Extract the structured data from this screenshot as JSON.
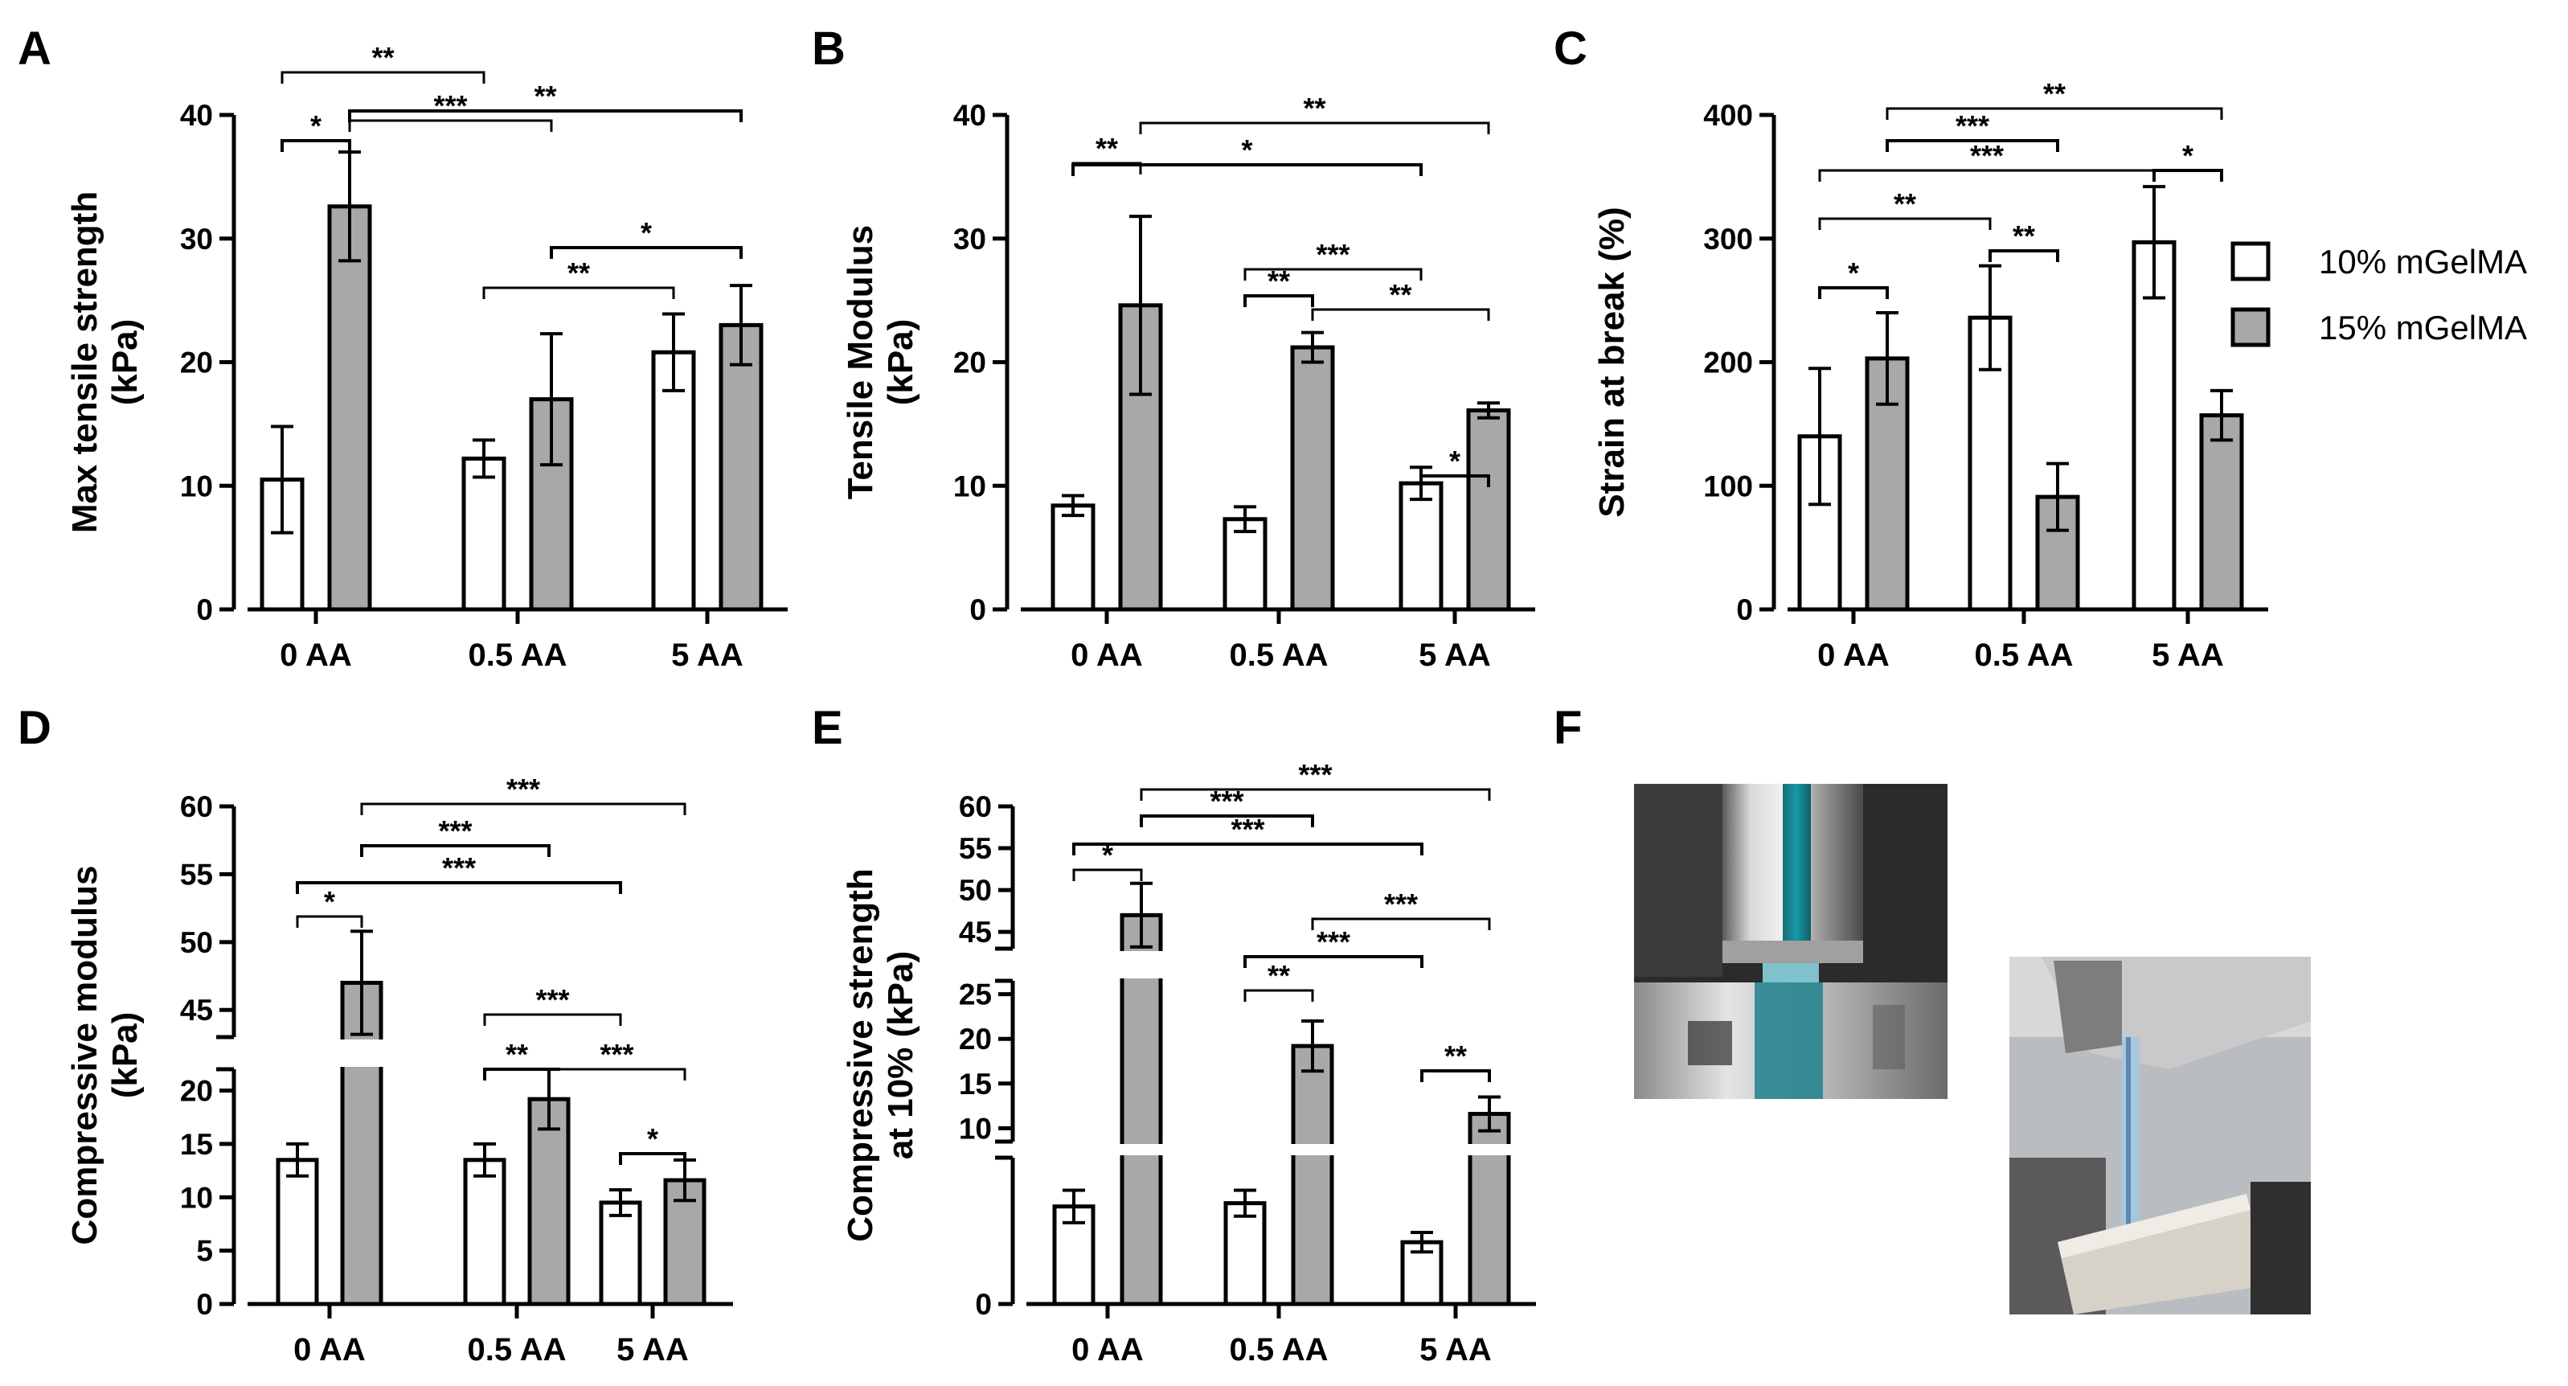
{
  "figure": {
    "panel_letters": {
      "A": "A",
      "B": "B",
      "C": "C",
      "D": "D",
      "E": "E",
      "F": "F"
    },
    "legend": [
      {
        "label": "10% mGelMA",
        "color": "#ffffff"
      },
      {
        "label": "15% mGelMA",
        "color": "#a8a8a8"
      }
    ],
    "colors": {
      "series_10": "#ffffff",
      "series_15": "#a8a8a8",
      "stroke": "#000000"
    },
    "photos": [
      {
        "name": "compression-test-photo",
        "description_icon": "photo-icon"
      },
      {
        "name": "tensile-test-photo",
        "description_icon": "photo-icon"
      }
    ]
  },
  "chart_data": [
    {
      "panel": "A",
      "type": "bar",
      "title": "",
      "xlabel": "",
      "ylabel": "Max tensile strength\n(kPa)",
      "categories": [
        "0 AA",
        "0.5 AA",
        "5 AA"
      ],
      "series": [
        {
          "name": "10% mGelMA",
          "values": [
            10.5,
            12.2,
            20.8
          ],
          "errors": [
            4.3,
            1.5,
            3.1
          ]
        },
        {
          "name": "15% mGelMA",
          "values": [
            32.6,
            17.0,
            23.0
          ],
          "errors": [
            4.4,
            5.3,
            3.2
          ]
        }
      ],
      "ylim": [
        0,
        40
      ],
      "yticks": [
        "0",
        "10",
        "20",
        "30",
        "40"
      ],
      "significance": [
        {
          "from": [
            0,
            0
          ],
          "to": [
            1,
            0
          ],
          "label": "**"
        },
        {
          "from": [
            0,
            0
          ],
          "to": [
            0,
            1
          ],
          "label": "*"
        },
        {
          "from": [
            0,
            1
          ],
          "to": [
            1,
            1
          ],
          "label": "***"
        },
        {
          "from": [
            0,
            1
          ],
          "to": [
            2,
            1
          ],
          "label": "**"
        },
        {
          "from": [
            1,
            0
          ],
          "to": [
            2,
            0
          ],
          "label": "**"
        },
        {
          "from": [
            1,
            1
          ],
          "to": [
            2,
            1
          ],
          "label": "*"
        }
      ]
    },
    {
      "panel": "B",
      "type": "bar",
      "title": "",
      "xlabel": "",
      "ylabel": "Tensile Modulus\n(kPa)",
      "categories": [
        "0 AA",
        "0.5 AA",
        "5 AA"
      ],
      "series": [
        {
          "name": "10% mGelMA",
          "values": [
            8.4,
            7.3,
            10.2
          ],
          "errors": [
            0.8,
            1.0,
            1.3
          ]
        },
        {
          "name": "15% mGelMA",
          "values": [
            24.6,
            21.2,
            16.1
          ],
          "errors": [
            7.2,
            1.2,
            0.6
          ]
        }
      ],
      "ylim": [
        0,
        40
      ],
      "yticks": [
        "0",
        "10",
        "20",
        "30",
        "40"
      ],
      "significance": [
        {
          "from": [
            0,
            1
          ],
          "to": [
            2,
            1
          ],
          "label": "**"
        },
        {
          "from": [
            0,
            0
          ],
          "to": [
            2,
            0
          ],
          "label": "*"
        },
        {
          "from": [
            0,
            0
          ],
          "to": [
            0,
            1
          ],
          "label": "**"
        },
        {
          "from": [
            1,
            0
          ],
          "to": [
            2,
            0
          ],
          "label": "***"
        },
        {
          "from": [
            1,
            0
          ],
          "to": [
            1,
            1
          ],
          "label": "**"
        },
        {
          "from": [
            1,
            1
          ],
          "to": [
            2,
            1
          ],
          "label": "**"
        },
        {
          "from": [
            2,
            0
          ],
          "to": [
            2,
            1
          ],
          "label": "*"
        }
      ]
    },
    {
      "panel": "C",
      "type": "bar",
      "title": "",
      "xlabel": "",
      "ylabel": "Strain at break (%)",
      "categories": [
        "0 AA",
        "0.5 AA",
        "5 AA"
      ],
      "series": [
        {
          "name": "10% mGelMA",
          "values": [
            140,
            236,
            297
          ],
          "errors": [
            55,
            42,
            45
          ]
        },
        {
          "name": "15% mGelMA",
          "values": [
            203,
            91,
            157
          ],
          "errors": [
            37,
            27,
            20
          ]
        }
      ],
      "ylim": [
        0,
        400
      ],
      "yticks": [
        "0",
        "100",
        "200",
        "300",
        "400"
      ],
      "significance": [
        {
          "from": [
            0,
            1
          ],
          "to": [
            2,
            1
          ],
          "label": "**"
        },
        {
          "from": [
            0,
            1
          ],
          "to": [
            1,
            1
          ],
          "label": "***"
        },
        {
          "from": [
            0,
            0
          ],
          "to": [
            2,
            0
          ],
          "label": "***"
        },
        {
          "from": [
            2,
            0
          ],
          "to": [
            2,
            1
          ],
          "label": "*"
        },
        {
          "from": [
            0,
            0
          ],
          "to": [
            1,
            0
          ],
          "label": "**"
        },
        {
          "from": [
            1,
            0
          ],
          "to": [
            1,
            1
          ],
          "label": "**"
        },
        {
          "from": [
            0,
            0
          ],
          "to": [
            0,
            1
          ],
          "label": "*"
        }
      ]
    },
    {
      "panel": "D",
      "type": "bar",
      "title": "",
      "xlabel": "",
      "ylabel": "Compressive modulus\n(kPa)",
      "categories": [
        "0 AA",
        "0.5 AA",
        "5 AA"
      ],
      "series": [
        {
          "name": "10% mGelMA",
          "values": [
            13.5,
            13.5,
            9.5
          ],
          "errors": [
            1.5,
            1.5,
            1.2
          ]
        },
        {
          "name": "15% mGelMA",
          "values": [
            47.0,
            19.2,
            11.6
          ],
          "errors": [
            3.8,
            2.8,
            1.9
          ]
        }
      ],
      "y_axis_break": {
        "lower": [
          0,
          22
        ],
        "upper": [
          43,
          60
        ]
      },
      "yticks_lower": [
        "0",
        "5",
        "10",
        "15",
        "20"
      ],
      "yticks_upper": [
        "45",
        "50",
        "55",
        "60"
      ],
      "significance": [
        {
          "from": [
            0,
            1
          ],
          "to": [
            2,
            1
          ],
          "label": "***"
        },
        {
          "from": [
            0,
            1
          ],
          "to": [
            1,
            1
          ],
          "label": "***"
        },
        {
          "from": [
            0,
            0
          ],
          "to": [
            2,
            0
          ],
          "label": "***"
        },
        {
          "from": [
            0,
            0
          ],
          "to": [
            0,
            1
          ],
          "label": "*"
        },
        {
          "from": [
            1,
            0
          ],
          "to": [
            2,
            0
          ],
          "label": "***"
        },
        {
          "from": [
            1,
            0
          ],
          "to": [
            1,
            1
          ],
          "label": "**"
        },
        {
          "from": [
            1,
            1
          ],
          "to": [
            2,
            1
          ],
          "label": "***"
        },
        {
          "from": [
            2,
            0
          ],
          "to": [
            2,
            1
          ],
          "label": "*"
        }
      ]
    },
    {
      "panel": "E",
      "type": "bar",
      "title": "",
      "xlabel": "",
      "ylabel": "Compressive strength\nat 10% (kPa)",
      "categories": [
        "0 AA",
        "0.5 AA",
        "5 AA"
      ],
      "series": [
        {
          "name": "10% mGelMA",
          "values": [
            3.0,
            3.1,
            1.9
          ],
          "errors": [
            0.5,
            0.4,
            0.3
          ]
        },
        {
          "name": "15% mGelMA",
          "values": [
            47.0,
            19.2,
            11.6
          ],
          "errors": [
            3.8,
            2.8,
            1.9
          ]
        }
      ],
      "y_axis_break": {
        "lower": [
          0,
          4.5
        ],
        "middle": [
          8.5,
          26.5
        ],
        "upper": [
          43,
          60
        ]
      },
      "yticks_lower": [
        "0"
      ],
      "yticks_middle": [
        "10",
        "15",
        "20",
        "25"
      ],
      "yticks_upper": [
        "45",
        "50",
        "55",
        "60"
      ],
      "significance": [
        {
          "from": [
            0,
            1
          ],
          "to": [
            2,
            1
          ],
          "label": "***"
        },
        {
          "from": [
            0,
            1
          ],
          "to": [
            1,
            1
          ],
          "label": "***"
        },
        {
          "from": [
            0,
            0
          ],
          "to": [
            2,
            0
          ],
          "label": "***"
        },
        {
          "from": [
            0,
            0
          ],
          "to": [
            0,
            1
          ],
          "label": "*"
        },
        {
          "from": [
            1,
            1
          ],
          "to": [
            2,
            1
          ],
          "label": "***"
        },
        {
          "from": [
            1,
            0
          ],
          "to": [
            2,
            0
          ],
          "label": "***"
        },
        {
          "from": [
            1,
            0
          ],
          "to": [
            1,
            1
          ],
          "label": "**"
        },
        {
          "from": [
            2,
            0
          ],
          "to": [
            2,
            1
          ],
          "label": "**"
        }
      ]
    }
  ]
}
